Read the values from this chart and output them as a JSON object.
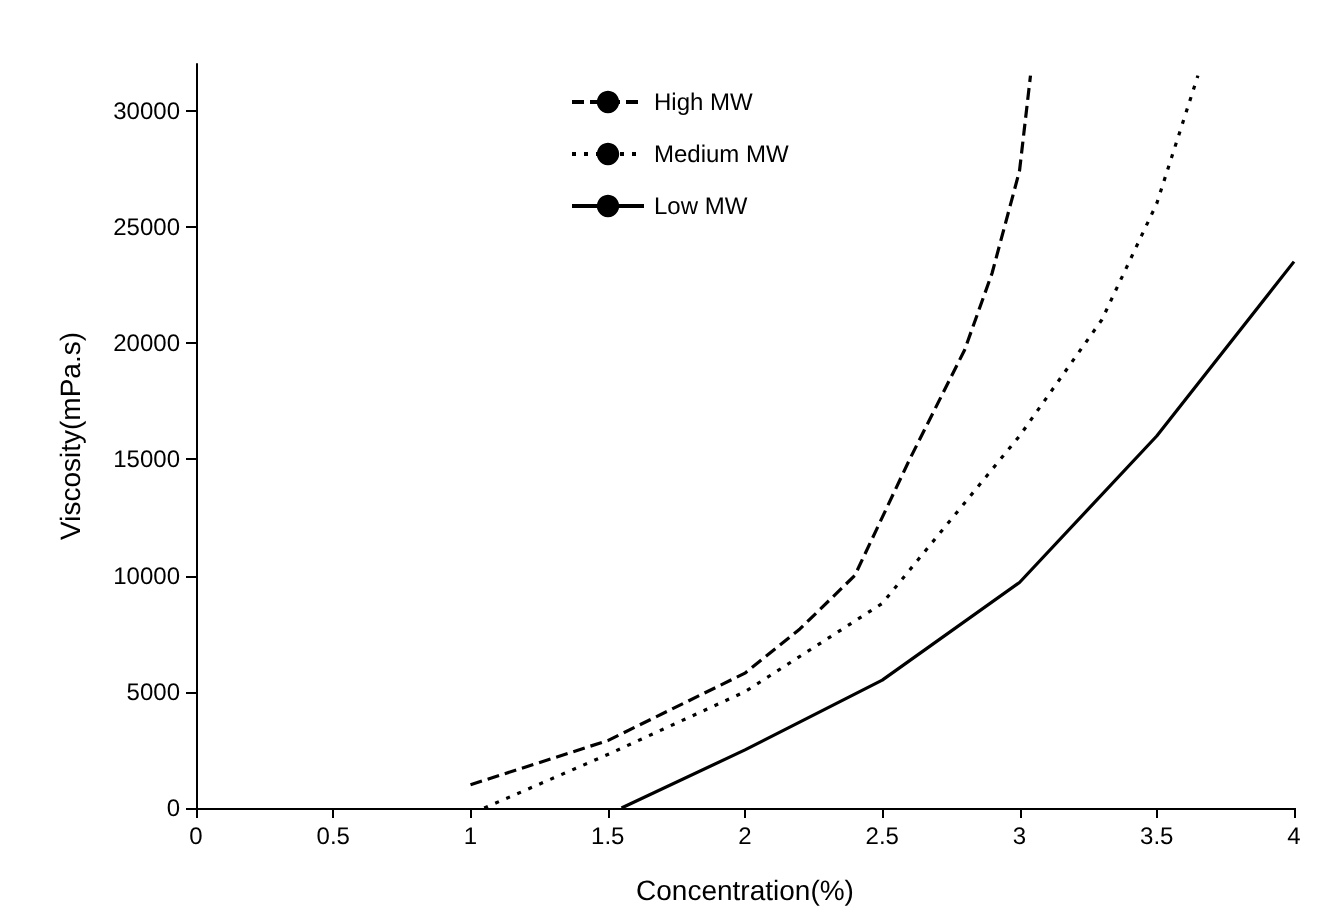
{
  "chart_data": {
    "type": "line",
    "xlabel": "Concentration(%)",
    "ylabel": "Viscosity(mPa.s)",
    "xlim": [
      0,
      4
    ],
    "xticks": [
      0,
      0.5,
      1,
      1.5,
      2,
      2.5,
      3,
      3.5,
      4
    ],
    "ylim": [
      0,
      32000
    ],
    "yticks": [
      0,
      5000,
      10000,
      15000,
      20000,
      25000,
      30000
    ],
    "grid": false,
    "legend": "top left",
    "marker": "none",
    "series": [
      {
        "name": "High MW",
        "color": "#000000",
        "line_style": "dashed",
        "x": [
          1,
          1.5,
          2,
          2.2,
          2.4,
          2.6,
          2.8,
          2.9,
          3,
          3.04
        ],
        "values": [
          1000,
          2900,
          5800,
          7700,
          10000,
          15000,
          19700,
          23000,
          27400,
          31500
        ]
      },
      {
        "name": "Medium MW",
        "color": "#000000",
        "line_style": "dotted",
        "x": [
          1.05,
          1.5,
          2,
          2.5,
          3,
          3.3,
          3.5,
          3.65
        ],
        "values": [
          0,
          2300,
          5000,
          8800,
          16000,
          21000,
          26000,
          31500
        ]
      },
      {
        "name": "Low MW",
        "color": "#000000",
        "line_style": "solid",
        "x": [
          1.55,
          2,
          2.5,
          3,
          3.5,
          4
        ],
        "values": [
          0,
          2500,
          5500,
          9700,
          16000,
          23500
        ]
      }
    ]
  }
}
